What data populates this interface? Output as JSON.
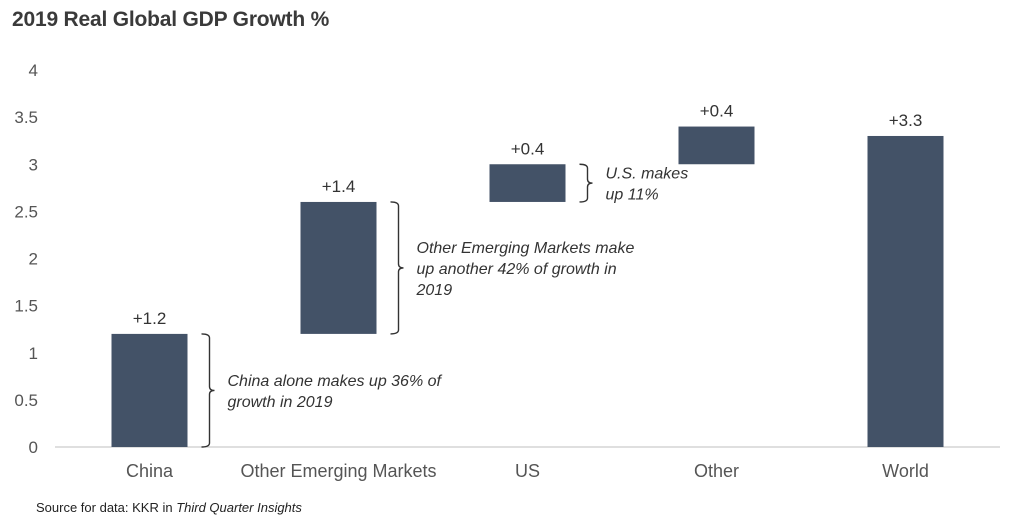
{
  "chart_data": {
    "type": "bar",
    "subtype": "waterfall",
    "title": "2019 Real Global GDP Growth %",
    "xlabel": "",
    "ylabel": "",
    "ylim": [
      0,
      4
    ],
    "yticks": [
      "0",
      "0.5",
      "1",
      "1.5",
      "2",
      "2.5",
      "3",
      "3.5",
      "4"
    ],
    "grid": false,
    "legend": "none",
    "categories": [
      "China",
      "Other Emerging Markets",
      "US",
      "Other",
      "World"
    ],
    "bars": [
      {
        "category": "China",
        "start": 0,
        "end": 1.2,
        "label": "+1.2"
      },
      {
        "category": "Other Emerging Markets",
        "start": 1.2,
        "end": 2.6,
        "label": "+1.4"
      },
      {
        "category": "US",
        "start": 2.6,
        "end": 3.0,
        "label": "+0.4"
      },
      {
        "category": "Other",
        "start": 3.0,
        "end": 3.4,
        "label": "+0.4"
      },
      {
        "category": "World",
        "start": 0,
        "end": 3.3,
        "label": "+3.3"
      }
    ],
    "annotations": [
      {
        "category": "China",
        "lines": [
          "China alone makes up 36% of",
          "growth in 2019"
        ]
      },
      {
        "category": "Other Emerging Markets",
        "lines": [
          "Other Emerging Markets make",
          "up another 42% of growth in",
          "2019"
        ]
      },
      {
        "category": "US",
        "lines": [
          "U.S. makes",
          "up 11%"
        ]
      }
    ]
  },
  "colors": {
    "bar": "#435267",
    "axis": "#bfbfbf"
  },
  "source": {
    "prefix": "Source for data: KKR in ",
    "publication": "Third Quarter Insights"
  }
}
